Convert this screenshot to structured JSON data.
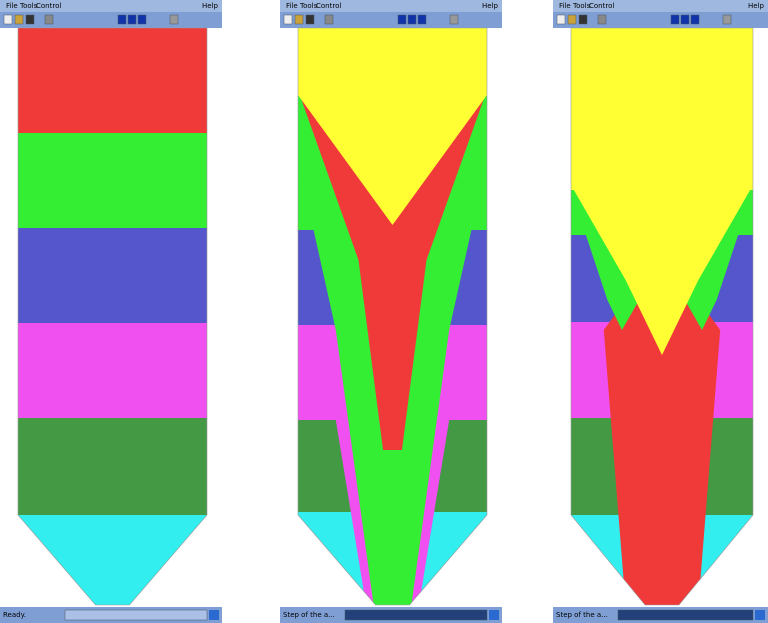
{
  "windows": [
    {
      "menu": [
        "File",
        "Tools",
        "Control",
        "Help"
      ],
      "status": "Ready."
    },
    {
      "menu": [
        "File",
        "Tools",
        "Control",
        "Help"
      ],
      "status": "Step of the a..."
    },
    {
      "menu": [
        "File",
        "Tools",
        "Control",
        "Help"
      ],
      "status": "Step of the a..."
    }
  ]
}
